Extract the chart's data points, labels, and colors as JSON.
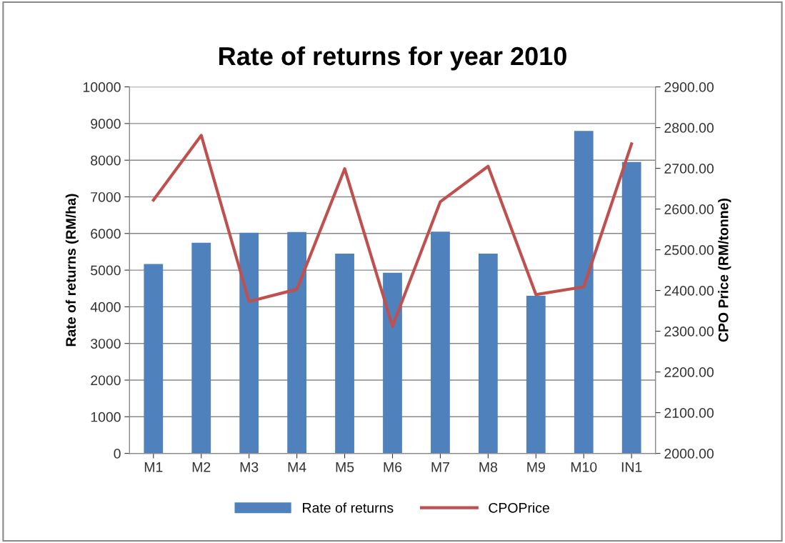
{
  "chart_data": {
    "type": "bar",
    "title": "Rate of returns for year 2010",
    "ylabel": "Rate of returns (RM/ha)",
    "y2label": "CPO Price (RM/tonne)",
    "categories": [
      "M1",
      "M2",
      "M3",
      "M4",
      "M5",
      "M6",
      "M7",
      "M8",
      "M9",
      "M10",
      "IN1"
    ],
    "series": [
      {
        "name": "Rate of returns",
        "color": "#4f81bd",
        "values": [
          5170,
          5750,
          6020,
          6040,
          5450,
          4930,
          6050,
          5450,
          4300,
          8800,
          7950
        ]
      },
      {
        "name": "CPOPrice",
        "type": "line",
        "axis": "y2",
        "color": "#c0504d",
        "values": [
          2622,
          2781,
          2373,
          2403,
          2699,
          2312,
          2618,
          2705,
          2390,
          2409,
          2760
        ]
      }
    ],
    "ylim": [
      0,
      10000
    ],
    "yticks": [
      0,
      1000,
      2000,
      3000,
      4000,
      5000,
      6000,
      7000,
      8000,
      9000,
      10000
    ],
    "y2lim": [
      2000,
      2900
    ],
    "y2ticks": [
      {
        "value": 2000,
        "label": "2000.00"
      },
      {
        "value": 2100,
        "label": "2100.00"
      },
      {
        "value": 2200,
        "label": "2200.00"
      },
      {
        "value": 2300,
        "label": "2300.00"
      },
      {
        "value": 2400,
        "label": "2400.00"
      },
      {
        "value": 2500,
        "label": "2500.00"
      },
      {
        "value": 2600,
        "label": "2600.00"
      },
      {
        "value": 2700,
        "label": "2700.00"
      },
      {
        "value": 2800,
        "label": "2800.00"
      },
      {
        "value": 2900,
        "label": "2900.00"
      }
    ],
    "grid": "y",
    "legend": "bottom",
    "marker": "none",
    "line_style": "solid"
  }
}
